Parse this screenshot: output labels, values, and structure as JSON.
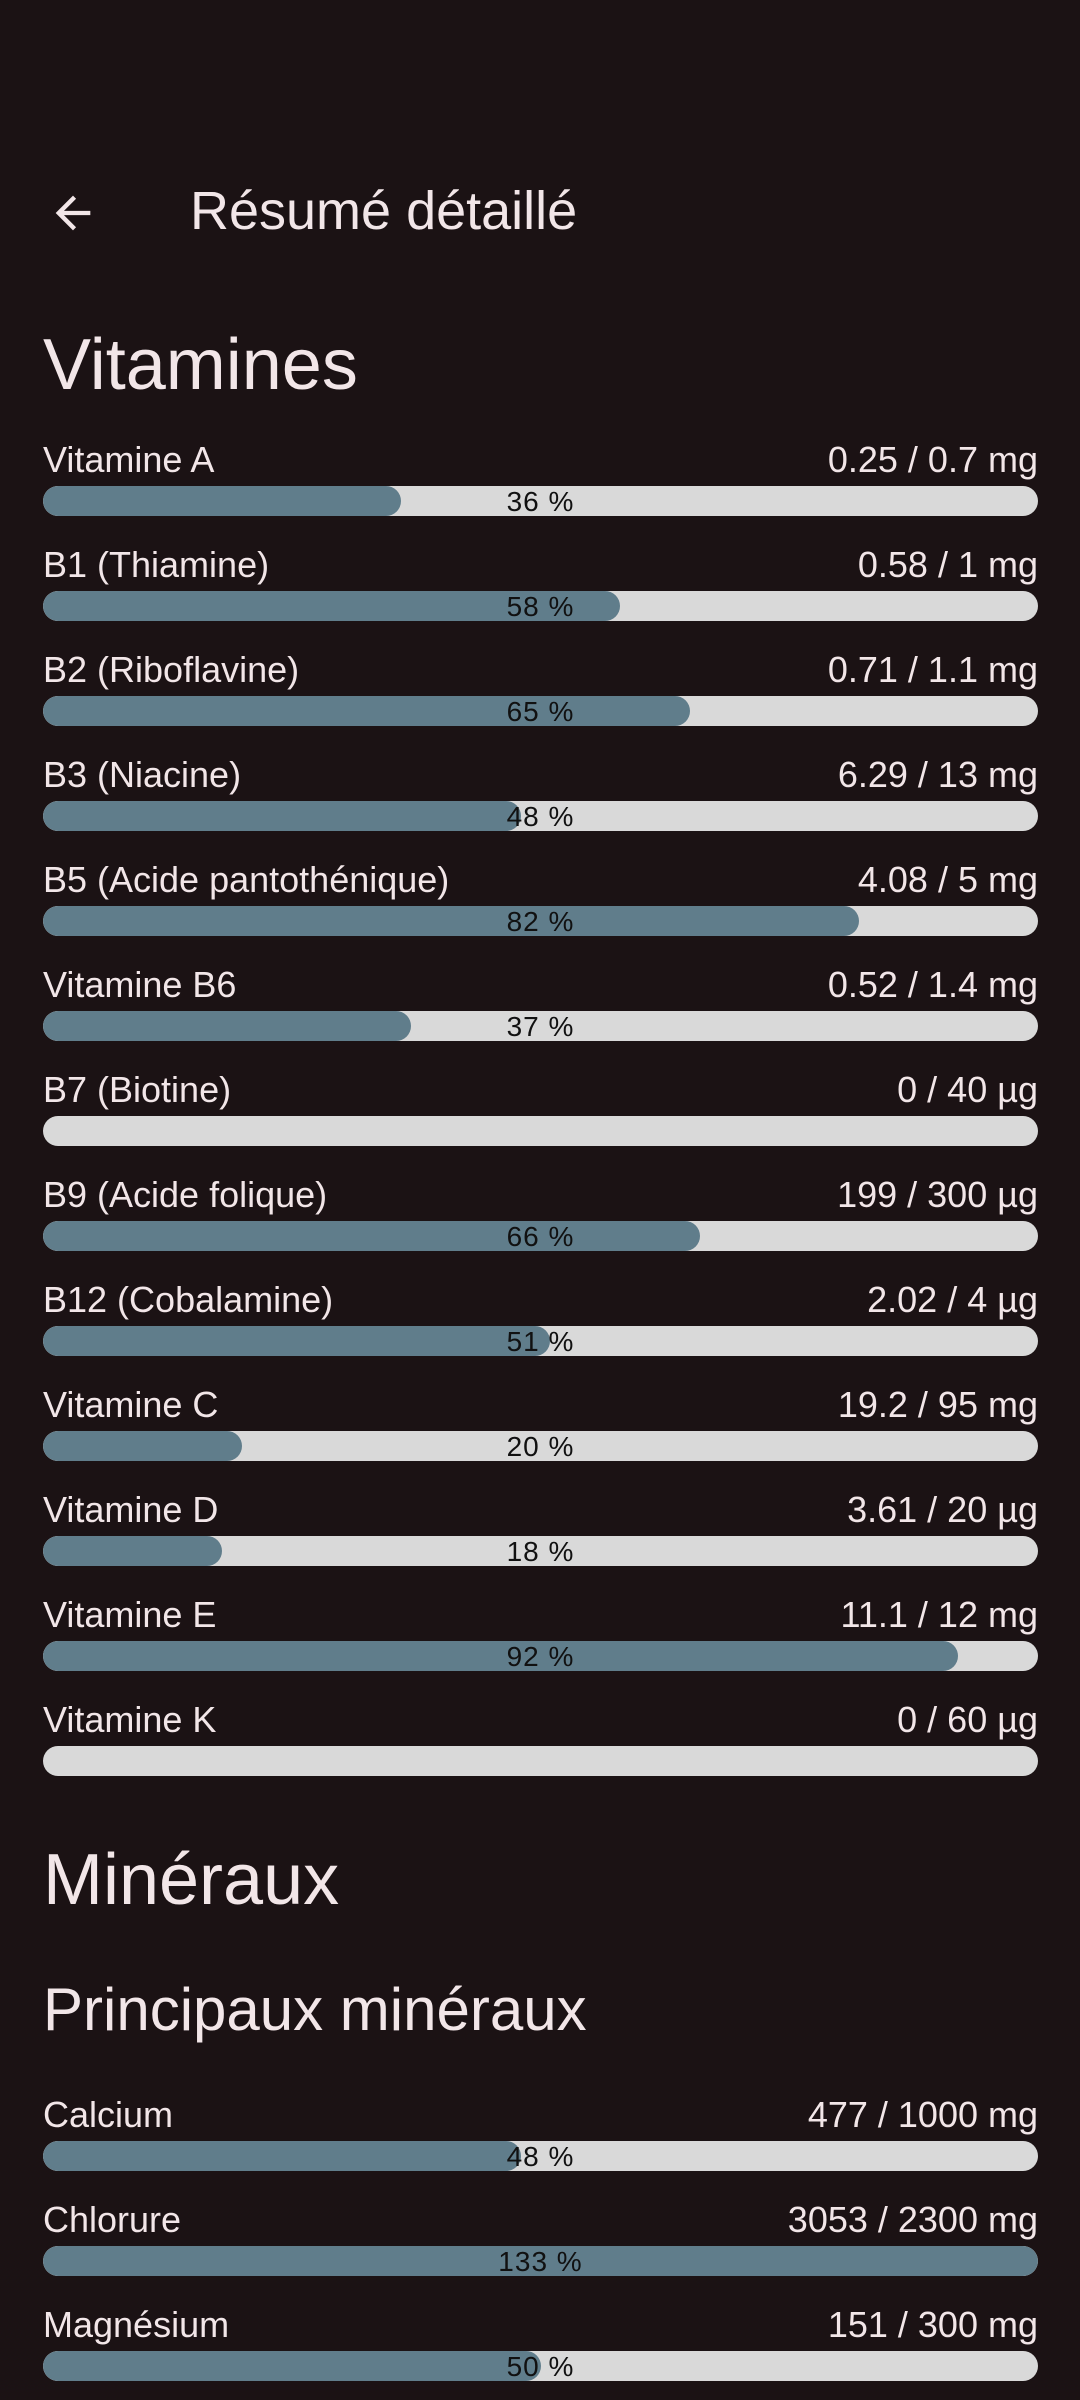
{
  "header": {
    "title": "Résumé détaillé",
    "back_icon": "arrow-left-icon"
  },
  "colors": {
    "background": "#1b1214",
    "text": "#f2e6e8",
    "bar_track": "#d9d9d9",
    "bar_fill": "#607d8b"
  },
  "vitamins": {
    "title": "Vitamines",
    "items": [
      {
        "name": "Vitamine A",
        "amount": "0.25 / 0.7 mg",
        "percent": 36,
        "percent_label": "36 %"
      },
      {
        "name": "B1 (Thiamine)",
        "amount": "0.58 / 1 mg",
        "percent": 58,
        "percent_label": "58 %"
      },
      {
        "name": "B2 (Riboflavine)",
        "amount": "0.71 / 1.1 mg",
        "percent": 65,
        "percent_label": "65 %"
      },
      {
        "name": "B3 (Niacine)",
        "amount": "6.29 / 13 mg",
        "percent": 48,
        "percent_label": "48 %"
      },
      {
        "name": "B5 (Acide pantothénique)",
        "amount": "4.08 / 5 mg",
        "percent": 82,
        "percent_label": "82 %"
      },
      {
        "name": "Vitamine B6",
        "amount": "0.52 / 1.4 mg",
        "percent": 37,
        "percent_label": "37 %"
      },
      {
        "name": "B7 (Biotine)",
        "amount": "0 / 40 µg",
        "percent": 0,
        "percent_label": ""
      },
      {
        "name": "B9 (Acide folique)",
        "amount": "199 / 300 µg",
        "percent": 66,
        "percent_label": "66 %"
      },
      {
        "name": "B12 (Cobalamine)",
        "amount": "2.02 / 4 µg",
        "percent": 51,
        "percent_label": "51 %"
      },
      {
        "name": "Vitamine C",
        "amount": "19.2 / 95 mg",
        "percent": 20,
        "percent_label": "20 %"
      },
      {
        "name": "Vitamine D",
        "amount": "3.61 / 20 µg",
        "percent": 18,
        "percent_label": "18 %"
      },
      {
        "name": "Vitamine E",
        "amount": "11.1 / 12 mg",
        "percent": 92,
        "percent_label": "92 %"
      },
      {
        "name": "Vitamine K",
        "amount": "0 / 60 µg",
        "percent": 0,
        "percent_label": ""
      }
    ]
  },
  "minerals": {
    "title": "Minéraux",
    "subtitle": "Principaux minéraux",
    "items": [
      {
        "name": "Calcium",
        "amount": "477 / 1000 mg",
        "percent": 48,
        "percent_label": "48 %"
      },
      {
        "name": "Chlorure",
        "amount": "3053 / 2300 mg",
        "percent": 133,
        "percent_label": "133 %"
      },
      {
        "name": "Magnésium",
        "amount": "151 / 300 mg",
        "percent": 50,
        "percent_label": "50 %"
      }
    ]
  }
}
